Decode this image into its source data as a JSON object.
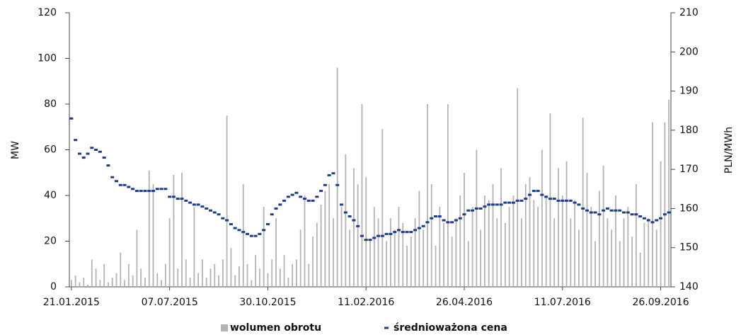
{
  "chart_data": {
    "type": "combo",
    "ylabel": "MW",
    "y2label": "PLN/MWh",
    "ylim": [
      0,
      120
    ],
    "yticks": [
      0,
      20,
      40,
      60,
      80,
      100,
      120
    ],
    "y2lim": [
      140,
      210
    ],
    "y2ticks": [
      140,
      150,
      160,
      170,
      180,
      190,
      200,
      210
    ],
    "categories": [
      "21.01.2015",
      null,
      null,
      null,
      null,
      null,
      null,
      null,
      null,
      null,
      null,
      null,
      null,
      null,
      null,
      null,
      null,
      null,
      null,
      null,
      null,
      null,
      null,
      null,
      "07.07.2015",
      null,
      null,
      null,
      null,
      null,
      null,
      null,
      null,
      null,
      null,
      null,
      null,
      null,
      null,
      null,
      null,
      null,
      null,
      null,
      null,
      null,
      null,
      null,
      "30.10.2015",
      null,
      null,
      null,
      null,
      null,
      null,
      null,
      null,
      null,
      null,
      null,
      null,
      null,
      null,
      null,
      null,
      null,
      null,
      null,
      null,
      null,
      null,
      null,
      "11.02.2016",
      null,
      null,
      null,
      null,
      null,
      null,
      null,
      null,
      null,
      null,
      null,
      null,
      null,
      null,
      null,
      null,
      null,
      null,
      null,
      null,
      null,
      null,
      null,
      "26.04.2016",
      null,
      null,
      null,
      null,
      null,
      null,
      null,
      null,
      null,
      null,
      null,
      null,
      null,
      null,
      null,
      null,
      null,
      null,
      null,
      null,
      null,
      null,
      null,
      "11.07.2016",
      null,
      null,
      null,
      null,
      null,
      null,
      null,
      null,
      null,
      null,
      null,
      null,
      null,
      null,
      null,
      null,
      null,
      null,
      null,
      null,
      null,
      null,
      null,
      "26.09.2016",
      null,
      null
    ],
    "series": [
      {
        "name": "wolumen obrotu",
        "type": "bar",
        "color": "#b3b3b3",
        "values": [
          3,
          5,
          2,
          4,
          1,
          12,
          8,
          3,
          10,
          2,
          4,
          6,
          15,
          3,
          10,
          5,
          25,
          8,
          4,
          51,
          45,
          6,
          3,
          10,
          30,
          49,
          8,
          50,
          12,
          4,
          35,
          6,
          12,
          4,
          8,
          10,
          5,
          12,
          75,
          17,
          5,
          9,
          45,
          10,
          3,
          14,
          8,
          35,
          6,
          12,
          30,
          8,
          14,
          4,
          10,
          12,
          25,
          40,
          10,
          22,
          28,
          36,
          42,
          45,
          30,
          96,
          35,
          58,
          25,
          52,
          45,
          80,
          48,
          20,
          35,
          30,
          69,
          20,
          30,
          25,
          35,
          28,
          18,
          22,
          30,
          42,
          25,
          80,
          45,
          18,
          35,
          28,
          80,
          22,
          30,
          40,
          50,
          20,
          35,
          60,
          25,
          40,
          38,
          45,
          30,
          52,
          28,
          35,
          40,
          87,
          30,
          45,
          48,
          38,
          35,
          60,
          40,
          76,
          30,
          52,
          40,
          55,
          30,
          38,
          25,
          74,
          50,
          35,
          20,
          42,
          53,
          30,
          25,
          40,
          20,
          30,
          35,
          22,
          45,
          15,
          28,
          30,
          72,
          25,
          55,
          72,
          82
        ]
      },
      {
        "name": "średnioważona cena",
        "type": "dash",
        "color": "#1f3c88",
        "axis": "y2",
        "values": [
          183,
          177.5,
          174,
          173,
          174,
          175.5,
          175,
          174.5,
          173,
          171,
          168,
          167,
          166,
          166,
          165.5,
          165,
          164.5,
          164.5,
          164.5,
          164.5,
          164.5,
          165,
          165,
          165,
          163,
          163,
          162.5,
          162.5,
          162,
          161.5,
          161,
          161,
          160.5,
          160,
          159.5,
          159,
          158.5,
          157.5,
          157,
          156,
          155,
          154.5,
          154,
          153.5,
          153,
          153,
          153.5,
          154.5,
          156,
          158.5,
          160,
          161,
          162,
          163,
          163.5,
          164,
          163,
          162.5,
          162,
          162,
          163,
          164.5,
          166,
          168.5,
          169,
          166,
          161,
          159,
          158,
          157,
          155.5,
          153,
          152,
          152,
          152.5,
          153,
          153,
          153.5,
          153.5,
          154,
          154.5,
          154,
          154,
          154,
          154.5,
          155,
          155.5,
          156.5,
          157.5,
          158,
          158,
          157,
          156.5,
          156.5,
          157,
          157.5,
          158.5,
          159.5,
          159.5,
          160,
          160,
          160.5,
          161,
          161,
          161,
          161,
          161.5,
          161.5,
          161.5,
          162,
          162,
          162.5,
          163.5,
          164.5,
          164.5,
          163.5,
          163,
          162.5,
          162.5,
          162,
          162,
          162,
          162,
          161.5,
          161,
          160,
          159.5,
          159,
          159,
          158.5,
          159.5,
          160,
          159.5,
          159.5,
          159.5,
          159,
          159,
          158.5,
          158.5,
          158,
          157.5,
          157,
          156.5,
          157,
          157.5,
          158.5,
          159
        ]
      }
    ]
  }
}
